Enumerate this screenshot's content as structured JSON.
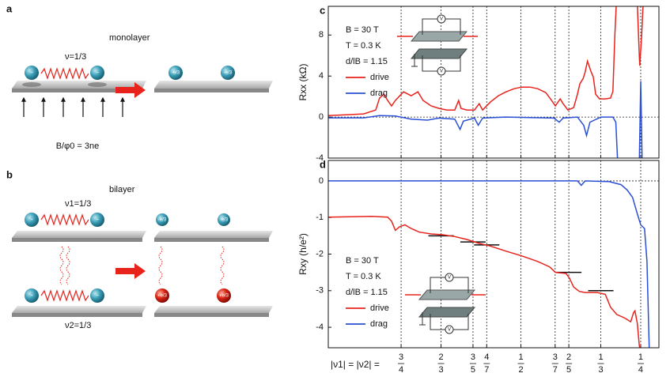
{
  "panels": {
    "a": {
      "label": "a",
      "title": "monolayer",
      "nu": "ν=1/3",
      "field": "B/φ0 = 3ne",
      "electron": "−",
      "quasi": "-e/3"
    },
    "b": {
      "label": "b",
      "title": "bilayer",
      "nu1": "ν1=1/3",
      "nu2": "ν2=1/3",
      "electron": "−",
      "quasi_top": "-e/3",
      "quasi_bottom": "+e/3"
    }
  },
  "chart_data": [
    {
      "type": "line",
      "panel_label": "c",
      "ylabel": "Rxx (kΩ)",
      "annotations": [
        "B = 30 T",
        "T = 0.3 K",
        "d/lB = 1.15"
      ],
      "meter": "V",
      "xlim": [
        0.902,
        0.212
      ],
      "ylim": [
        -4,
        10.8
      ],
      "xticks": [
        0.75,
        0.6667,
        0.6,
        0.5714,
        0.5,
        0.4286,
        0.4,
        0.3333,
        0.25
      ],
      "yticks": [
        -4,
        0,
        4,
        8
      ],
      "zero_line": true,
      "series": [
        {
          "name": "drive",
          "color": "#e8231c",
          "x": [
            0.902,
            0.861,
            0.828,
            0.803,
            0.795,
            0.786,
            0.778,
            0.77,
            0.762,
            0.745,
            0.729,
            0.715,
            0.704,
            0.687,
            0.671,
            0.654,
            0.638,
            0.63,
            0.625,
            0.613,
            0.597,
            0.587,
            0.58,
            0.564,
            0.547,
            0.531,
            0.514,
            0.498,
            0.481,
            0.465,
            0.448,
            0.436,
            0.428,
            0.418,
            0.412,
            0.402,
            0.39,
            0.382,
            0.377,
            0.37,
            0.366,
            0.361,
            0.354,
            0.349,
            0.344,
            0.336,
            0.324,
            0.313,
            0.308,
            0.304,
            0.301,
            0.28,
            0.257,
            0.253,
            0.252,
            0.248,
            0.245
          ],
          "values": [
            0.15,
            0.23,
            0.31,
            0.69,
            1.85,
            2.23,
            1.62,
            1.08,
            1.62,
            2.46,
            2.08,
            2.46,
            1.62,
            1.08,
            0.85,
            0.69,
            0.69,
            1.62,
            0.85,
            0.69,
            0.69,
            1.31,
            0.69,
            1.46,
            2.08,
            2.46,
            2.77,
            2.92,
            2.92,
            2.77,
            2.38,
            1.62,
            1.08,
            1.77,
            1.31,
            0.69,
            0.92,
            2.23,
            3.23,
            3.77,
            4.38,
            5.46,
            4.46,
            3.92,
            2.23,
            1.77,
            1.77,
            1.85,
            2.5,
            8,
            11,
            null,
            11,
            6,
            5,
            8,
            11
          ]
        },
        {
          "name": "drag",
          "color": "#2a4fd6",
          "x": [
            0.902,
            0.828,
            0.795,
            0.762,
            0.729,
            0.695,
            0.671,
            0.638,
            0.627,
            0.62,
            0.597,
            0.589,
            0.58,
            0.531,
            0.431,
            0.42,
            0.412,
            0.382,
            0.369,
            0.363,
            0.356,
            0.333,
            0.308,
            0.302,
            0.298,
            0.28,
            0.253,
            0.25,
            0.247
          ],
          "values": [
            -0.08,
            -0.08,
            0.15,
            0.1,
            -0.2,
            -0.3,
            -0.1,
            -0.2,
            -1.2,
            -0.4,
            -0.1,
            -0.8,
            -0.1,
            0,
            -0.1,
            -0.5,
            -0.1,
            0,
            -0.8,
            -1.8,
            -0.5,
            0,
            0,
            -0.5,
            -4.5,
            null,
            -4.5,
            3.5,
            -4.5
          ]
        }
      ]
    },
    {
      "type": "line",
      "panel_label": "d",
      "ylabel": "Rxy (h/e²)",
      "xlabel": "|ν1| = |ν2| =",
      "annotations": [
        "B = 30 T",
        "T = 0.3 K",
        "d/lB = 1.15"
      ],
      "meter": "V",
      "xlim": [
        0.902,
        0.212
      ],
      "ylim": [
        -4.56,
        0.56
      ],
      "xticks": [
        {
          "value": 0.75,
          "label": "3/4"
        },
        {
          "value": 0.6667,
          "label": "2/3"
        },
        {
          "value": 0.6,
          "label": "3/5"
        },
        {
          "value": 0.5714,
          "label": "4/7"
        },
        {
          "value": 0.5,
          "label": "1/2"
        },
        {
          "value": 0.4286,
          "label": "3/7"
        },
        {
          "value": 0.4,
          "label": "2/5"
        },
        {
          "value": 0.3333,
          "label": "1/3"
        },
        {
          "value": 0.25,
          "label": "1/4"
        }
      ],
      "yticks": [
        -4,
        -3,
        -2,
        -1,
        0
      ],
      "zero_line": true,
      "plateaus": [
        {
          "x": 0.6667,
          "value": -1.5
        },
        {
          "x": 0.6,
          "value": -1.667
        },
        {
          "x": 0.5714,
          "value": -1.75
        },
        {
          "x": 0.4,
          "value": -2.5
        },
        {
          "x": 0.3333,
          "value": -3
        }
      ],
      "series": [
        {
          "name": "drive",
          "color": "#e8231c",
          "x": [
            0.902,
            0.811,
            0.778,
            0.77,
            0.762,
            0.753,
            0.742,
            0.729,
            0.712,
            0.687,
            0.663,
            0.638,
            0.613,
            0.589,
            0.564,
            0.531,
            0.498,
            0.465,
            0.44,
            0.428,
            0.406,
            0.399,
            0.39,
            0.378,
            0.366,
            0.341,
            0.324,
            0.313,
            0.3,
            0.283,
            0.271,
            0.265,
            0.262,
            0.257,
            0.253,
            0.25
          ],
          "values": [
            -0.99,
            -0.97,
            -0.99,
            -1.1,
            -1.35,
            -1.25,
            -1.2,
            -1.3,
            -1.4,
            -1.45,
            -1.47,
            -1.52,
            -1.6,
            -1.7,
            -1.78,
            -1.92,
            -2.05,
            -2.2,
            -2.35,
            -2.5,
            -2.53,
            -2.65,
            -2.9,
            -3.02,
            -3.05,
            -3.05,
            -3.1,
            -3.45,
            -3.65,
            -3.75,
            -3.85,
            -3.6,
            -3.55,
            -3.9,
            -4.5,
            -4.7
          ]
        },
        {
          "name": "drag",
          "color": "#2a4fd6",
          "x": [
            0.902,
            0.762,
            0.597,
            0.382,
            0.374,
            0.366,
            0.316,
            0.291,
            0.278,
            0.267,
            0.257,
            0.25,
            0.242,
            0.237,
            0.232
          ],
          "values": [
            0,
            0,
            0,
            0,
            -0.12,
            0,
            -0.02,
            -0.1,
            -0.25,
            -0.45,
            -0.9,
            -1.2,
            -1.3,
            -2.2,
            -4.7
          ]
        }
      ]
    }
  ]
}
